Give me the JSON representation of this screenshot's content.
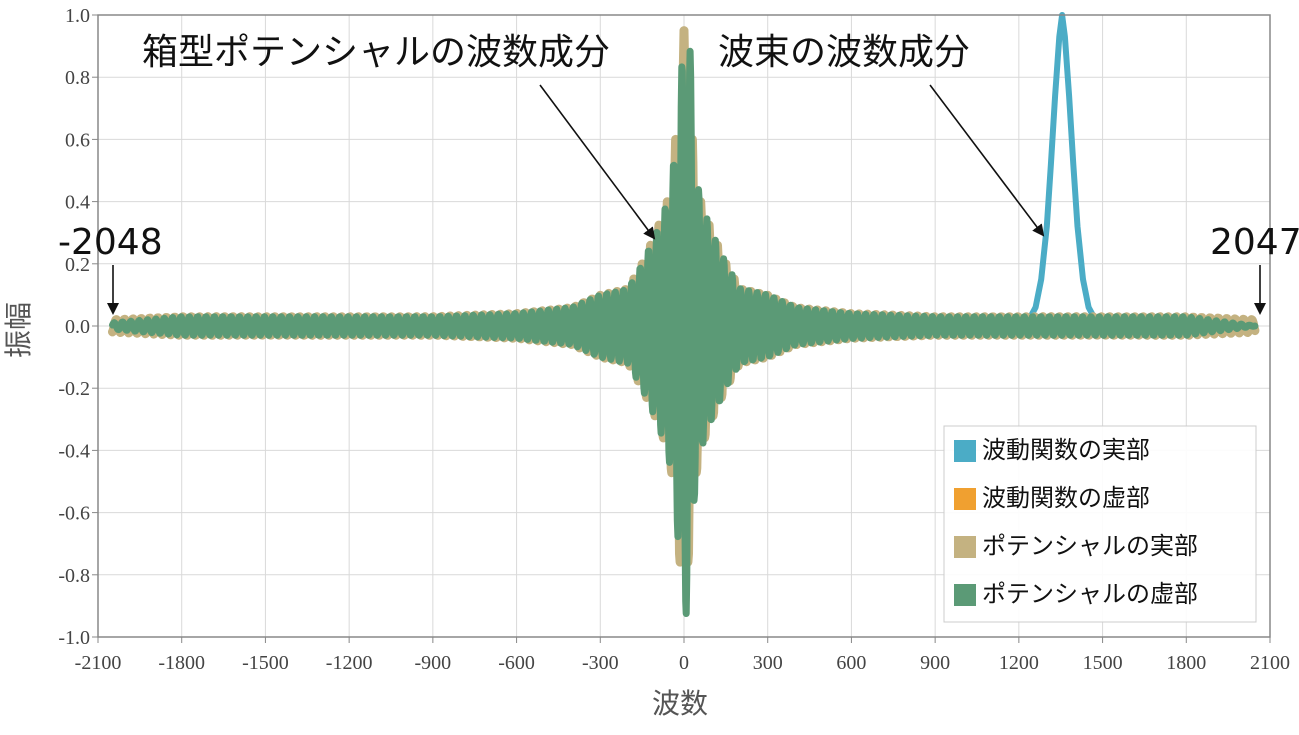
{
  "chart_data": {
    "type": "line",
    "title": "",
    "xlabel": "波数",
    "ylabel": "振幅",
    "xlim": [
      -2100,
      2100
    ],
    "ylim": [
      -1.0,
      1.0
    ],
    "x_ticks": [
      -2100,
      -1800,
      -1500,
      -1200,
      -900,
      -600,
      -300,
      0,
      300,
      600,
      900,
      1200,
      1500,
      1800,
      2100
    ],
    "y_ticks": [
      -1.0,
      -0.8,
      -0.6,
      -0.4,
      -0.2,
      0.0,
      0.2,
      0.4,
      0.6,
      0.8,
      1.0
    ],
    "x_tick_labels": [
      "-2100",
      "-1800",
      "-1500",
      "-1200",
      "-900",
      "-600",
      "-300",
      "0",
      "300",
      "600",
      "900",
      "1200",
      "1500",
      "1800",
      "2100"
    ],
    "y_tick_labels": [
      "-1.0",
      "-0.8",
      "-0.6",
      "-0.4",
      "-0.2",
      "0.0",
      "0.2",
      "0.4",
      "0.6",
      "0.8",
      "1.0"
    ],
    "grid": true,
    "legend_position": "bottom-right",
    "series": [
      {
        "name": "波動関数の実部",
        "color": "#4bacc6",
        "x": [
          -2048,
          1200,
          1230,
          1260,
          1280,
          1300,
          1315,
          1330,
          1345,
          1355,
          1365,
          1380,
          1395,
          1410,
          1430,
          1450,
          1480,
          1510,
          2047
        ],
        "y": [
          0.0,
          0.0,
          0.01,
          0.06,
          0.15,
          0.32,
          0.52,
          0.74,
          0.93,
          1.0,
          0.93,
          0.74,
          0.52,
          0.32,
          0.15,
          0.06,
          0.01,
          0.0,
          0.0
        ]
      },
      {
        "name": "波動関数の虚部",
        "color": "#f0a030",
        "x": [
          -2048,
          2047
        ],
        "y": [
          0.0,
          0.0
        ]
      },
      {
        "name": "ポテンシャルの実部",
        "color": "#c4b281",
        "x": [
          -2048,
          -1800,
          -1500,
          -1200,
          -900,
          -600,
          -400,
          -300,
          -200,
          -150,
          -100,
          -60,
          -40,
          -20,
          0,
          20,
          40,
          60,
          100,
          150,
          200,
          300,
          400,
          600,
          900,
          1200,
          1500,
          1800,
          2047
        ],
        "y": [
          -0.02,
          0.03,
          -0.03,
          0.03,
          -0.03,
          0.04,
          -0.06,
          0.1,
          -0.12,
          0.2,
          -0.3,
          0.4,
          -0.5,
          0.7,
          0.95,
          0.7,
          -0.5,
          0.4,
          -0.3,
          0.2,
          -0.12,
          0.1,
          -0.06,
          0.04,
          -0.03,
          0.03,
          -0.03,
          0.03,
          -0.02
        ]
      },
      {
        "name": "ポテンシャルの虚部",
        "color": "#5b9a76",
        "x": [
          -2048,
          -1800,
          -1500,
          -1200,
          -900,
          -600,
          -400,
          -300,
          -200,
          -150,
          -100,
          -60,
          -40,
          -20,
          0,
          20,
          40,
          60,
          100,
          150,
          200,
          300,
          400,
          600,
          900,
          1200,
          1500,
          1800,
          2047
        ],
        "y": [
          0.01,
          -0.03,
          0.03,
          -0.03,
          0.03,
          -0.04,
          0.06,
          -0.1,
          0.12,
          -0.2,
          0.3,
          -0.4,
          0.5,
          -0.7,
          0.93,
          -0.93,
          0.5,
          -0.4,
          0.3,
          -0.2,
          0.12,
          -0.1,
          0.06,
          -0.04,
          0.03,
          -0.03,
          0.03,
          -0.03,
          0.0
        ]
      }
    ],
    "annotations": [
      {
        "text": "箱型ポテンシャルの波数成分"
      },
      {
        "text": "波束の波数成分"
      },
      {
        "text": "-2048"
      },
      {
        "text": "2047"
      }
    ]
  }
}
